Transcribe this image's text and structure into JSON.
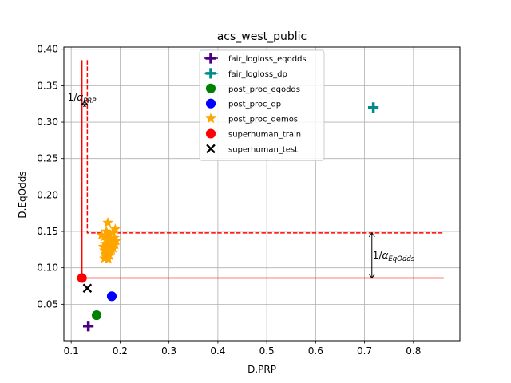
{
  "chart_data": {
    "type": "scatter",
    "title": "acs_west_public",
    "xlabel": "D.PRP",
    "ylabel": "D.EqOdds",
    "xlim": [
      0.085,
      0.895
    ],
    "ylim": [
      0.0,
      0.403
    ],
    "xticks": [
      0.1,
      0.2,
      0.3,
      0.4,
      0.5,
      0.6,
      0.7,
      0.8
    ],
    "xtick_labels": [
      "0.1",
      "0.2",
      "0.3",
      "0.4",
      "0.5",
      "0.6",
      "0.7",
      "0.8"
    ],
    "yticks": [
      0.05,
      0.1,
      0.15,
      0.2,
      0.25,
      0.3,
      0.35,
      0.4
    ],
    "ytick_labels": [
      "0.05",
      "0.10",
      "0.15",
      "0.20",
      "0.25",
      "0.30",
      "0.35",
      "0.40"
    ],
    "grid": true,
    "legend_position": "top-center",
    "series": [
      {
        "name": "fair_logloss_eqodds",
        "marker": "plus",
        "color": "#4b0082",
        "points": [
          [
            0.135,
            0.02
          ]
        ]
      },
      {
        "name": "fair_logloss_dp",
        "marker": "plus",
        "color": "#008b8b",
        "points": [
          [
            0.718,
            0.32
          ]
        ]
      },
      {
        "name": "post_proc_eqodds",
        "marker": "circle",
        "color": "#008000",
        "points": [
          [
            0.152,
            0.035
          ]
        ]
      },
      {
        "name": "post_proc_dp",
        "marker": "circle",
        "color": "#0000ff",
        "points": [
          [
            0.183,
            0.061
          ]
        ]
      },
      {
        "name": "post_proc_demos",
        "marker": "star",
        "color": "#ffa500",
        "points": [
          [
            0.175,
            0.162
          ],
          [
            0.19,
            0.153
          ],
          [
            0.172,
            0.15
          ],
          [
            0.185,
            0.148
          ],
          [
            0.162,
            0.145
          ],
          [
            0.178,
            0.146
          ],
          [
            0.168,
            0.143
          ],
          [
            0.188,
            0.141
          ],
          [
            0.18,
            0.139
          ],
          [
            0.172,
            0.138
          ],
          [
            0.192,
            0.137
          ],
          [
            0.176,
            0.136
          ],
          [
            0.184,
            0.134
          ],
          [
            0.17,
            0.133
          ],
          [
            0.19,
            0.132
          ],
          [
            0.174,
            0.131
          ],
          [
            0.182,
            0.13
          ],
          [
            0.166,
            0.129
          ],
          [
            0.178,
            0.128
          ],
          [
            0.186,
            0.127
          ],
          [
            0.172,
            0.126
          ],
          [
            0.168,
            0.124
          ],
          [
            0.18,
            0.123
          ],
          [
            0.175,
            0.121
          ],
          [
            0.17,
            0.119
          ],
          [
            0.178,
            0.117
          ],
          [
            0.172,
            0.115
          ],
          [
            0.168,
            0.113
          ],
          [
            0.176,
            0.112
          ],
          [
            0.183,
            0.125
          ]
        ]
      },
      {
        "name": "superhuman_train",
        "marker": "circle",
        "color": "#ff0000",
        "points": [
          [
            0.122,
            0.086
          ]
        ]
      },
      {
        "name": "superhuman_test",
        "marker": "x",
        "color": "#000000",
        "points": [
          [
            0.133,
            0.072
          ]
        ]
      }
    ],
    "reference_lines": [
      {
        "style": "solid",
        "color": "#ff0000",
        "points": [
          [
            0.122,
            0.385
          ],
          [
            0.122,
            0.086
          ],
          [
            0.862,
            0.086
          ]
        ]
      },
      {
        "style": "dashed",
        "color": "#ff0000",
        "points": [
          [
            0.133,
            0.385
          ],
          [
            0.133,
            0.148
          ],
          [
            0.862,
            0.148
          ]
        ]
      }
    ],
    "annotations": [
      {
        "text": "1/αPRP",
        "main": "1/α",
        "sub": "PRP"
      },
      {
        "text": "1/αEqOdds",
        "main": "1/α",
        "sub": "EqOdds"
      }
    ],
    "double_arrows": [
      {
        "orientation": "horizontal",
        "from": [
          0.122,
          0.325
        ],
        "to": [
          0.133,
          0.325
        ]
      },
      {
        "orientation": "vertical",
        "from": [
          0.715,
          0.148
        ],
        "to": [
          0.715,
          0.086
        ]
      }
    ]
  }
}
